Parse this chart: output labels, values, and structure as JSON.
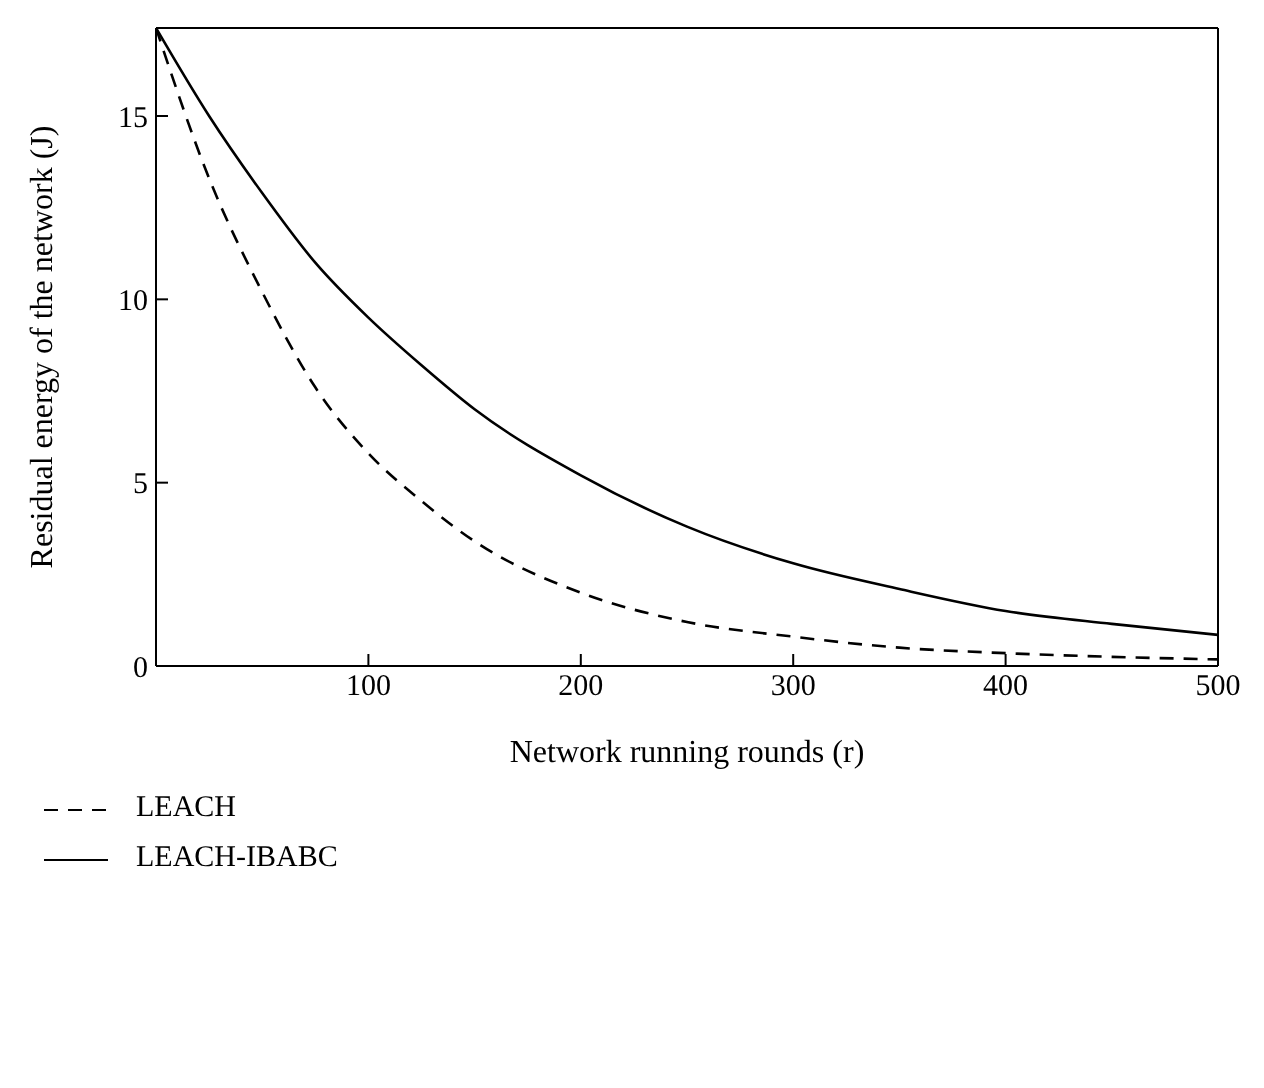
{
  "chart_data": {
    "type": "line",
    "xlabel": "Network running rounds (r)",
    "ylabel": "Residual energy of the network (J)",
    "x": [
      0,
      25,
      50,
      75,
      100,
      125,
      150,
      200,
      250,
      300,
      350,
      400,
      450,
      500
    ],
    "series": [
      {
        "name": "LEACH",
        "color": "#000000",
        "line_style": "dashed",
        "values": [
          17.4,
          13.3,
          10.2,
          7.6,
          5.8,
          4.5,
          3.4,
          2.0,
          1.2,
          0.8,
          0.5,
          0.35,
          0.25,
          0.18
        ]
      },
      {
        "name": "LEACH-IBABC",
        "color": "#000000",
        "line_style": "solid",
        "values": [
          17.4,
          15.0,
          12.9,
          11.0,
          9.5,
          8.2,
          7.0,
          5.2,
          3.8,
          2.8,
          2.1,
          1.5,
          1.15,
          0.85
        ]
      }
    ],
    "xlim": [
      0,
      500
    ],
    "xticks": [
      100,
      200,
      300,
      400,
      500
    ],
    "ylim": [
      0,
      17.4
    ],
    "yticks": [
      0,
      5,
      10,
      15
    ],
    "grid": false,
    "legend": "bottom left",
    "marker": "none"
  }
}
